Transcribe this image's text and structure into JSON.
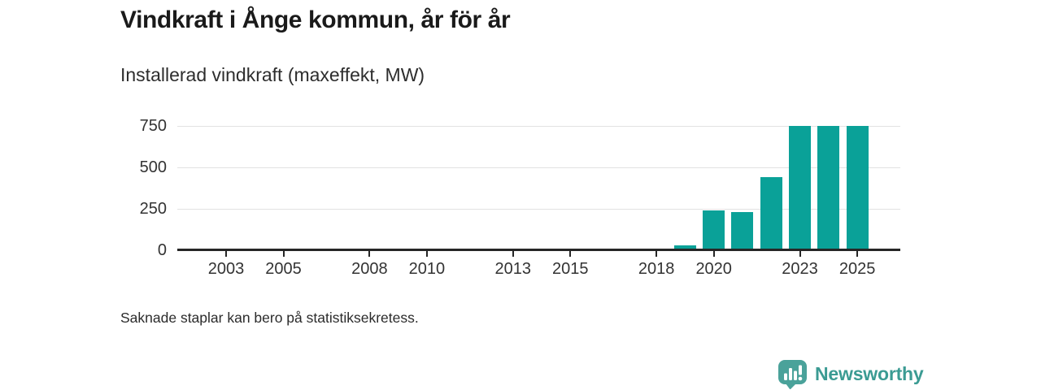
{
  "header": {
    "title": "Vindkraft i Ånge kommun, år för år",
    "subtitle": "Installerad vindkraft (maxeffekt, MW)"
  },
  "footnote": "Saknade staplar kan bero på statistiksekretess.",
  "logo": {
    "label": "Newsworthy",
    "icon": "newsworthy-chart-pin-icon",
    "icon_color": "#4AA29A",
    "text_color": "#3B9B93"
  },
  "colors": {
    "bar": "#0AA198",
    "axis_line": "#262626",
    "grid_line": "#E2E2E2",
    "axis_text": "#333333"
  },
  "chart_data": {
    "type": "bar",
    "title": "Vindkraft i Ånge kommun, år för år",
    "subtitle": "Installerad vindkraft (maxeffekt, MW)",
    "xlabel": "",
    "ylabel": "Installerad vindkraft (maxeffekt, MW)",
    "categories": [
      2019,
      2020,
      2021,
      2022,
      2023,
      2024,
      2025
    ],
    "values": [
      30,
      240,
      230,
      440,
      750,
      750,
      750
    ],
    "x_axis": {
      "range": [
        2001.3,
        2026.5
      ],
      "ticks": [
        2003,
        2005,
        2008,
        2010,
        2013,
        2015,
        2018,
        2020,
        2023,
        2025
      ]
    },
    "y_axis": {
      "range": [
        0,
        750
      ],
      "ticks": [
        0,
        250,
        500,
        750
      ]
    },
    "grid": "horizontal",
    "legend": "none",
    "footnote": "Saknade staplar kan bero på statistiksekretess."
  }
}
